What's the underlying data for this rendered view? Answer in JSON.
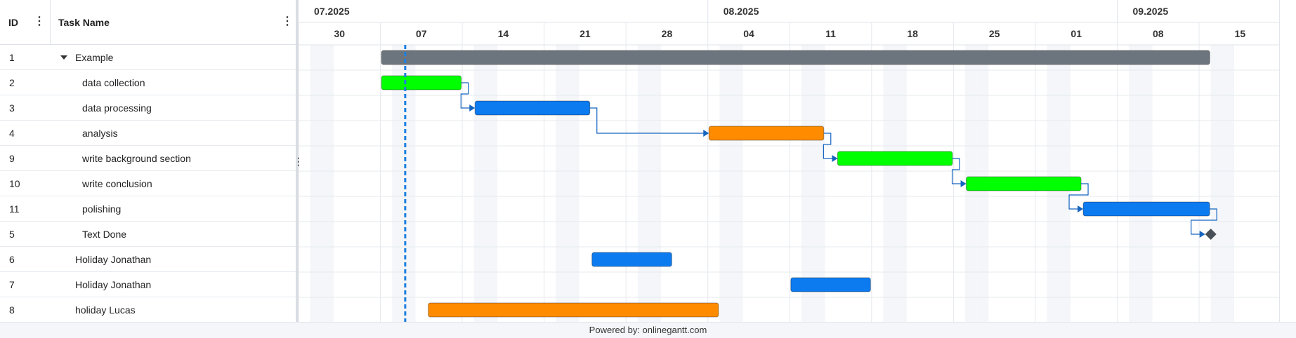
{
  "grid": {
    "col_id": "ID",
    "col_name": "Task Name",
    "menu_glyph": "⋮",
    "rows": [
      {
        "id": "1",
        "name": "Example",
        "level": 0,
        "expandable": true
      },
      {
        "id": "2",
        "name": "data collection",
        "level": 1
      },
      {
        "id": "3",
        "name": "data processing",
        "level": 1
      },
      {
        "id": "4",
        "name": "analysis",
        "level": 1
      },
      {
        "id": "9",
        "name": "write background section",
        "level": 1
      },
      {
        "id": "10",
        "name": "write conclusion",
        "level": 1
      },
      {
        "id": "11",
        "name": "polishing",
        "level": 1
      },
      {
        "id": "5",
        "name": "Text Done",
        "level": 1
      },
      {
        "id": "6",
        "name": "Holiday Jonathan",
        "level": 0
      },
      {
        "id": "7",
        "name": "Holiday Jonathan",
        "level": 0
      },
      {
        "id": "8",
        "name": "holiday Lucas",
        "level": 0
      }
    ]
  },
  "timeline": {
    "start_date": "2025-06-27",
    "today": "2025-07-06",
    "months": [
      {
        "label": "07.2025",
        "start": "2025-06-27"
      },
      {
        "label": "08.2025",
        "start": "2025-08-01"
      },
      {
        "label": "09.2025",
        "start": "2025-09-05"
      }
    ],
    "weeks": [
      {
        "label": "30",
        "start": "2025-06-27"
      },
      {
        "label": "07",
        "start": "2025-07-04"
      },
      {
        "label": "14",
        "start": "2025-07-11"
      },
      {
        "label": "21",
        "start": "2025-07-18"
      },
      {
        "label": "28",
        "start": "2025-07-25"
      },
      {
        "label": "04",
        "start": "2025-08-01"
      },
      {
        "label": "11",
        "start": "2025-08-08"
      },
      {
        "label": "18",
        "start": "2025-08-15"
      },
      {
        "label": "25",
        "start": "2025-08-22"
      },
      {
        "label": "01",
        "start": "2025-08-29"
      },
      {
        "label": "08",
        "start": "2025-09-05"
      },
      {
        "label": "15",
        "start": "2025-09-12"
      }
    ]
  },
  "bars": [
    {
      "row": 0,
      "start": "2025-07-04",
      "end": "2025-09-13",
      "color": "#6c757d",
      "kind": "summary"
    },
    {
      "row": 1,
      "start": "2025-07-04",
      "end": "2025-07-11",
      "color": "#00ff00"
    },
    {
      "row": 2,
      "start": "2025-07-12",
      "end": "2025-07-22",
      "color": "#0d7bf0"
    },
    {
      "row": 3,
      "start": "2025-08-01",
      "end": "2025-08-11",
      "color": "#ff8c00"
    },
    {
      "row": 4,
      "start": "2025-08-12",
      "end": "2025-08-22",
      "color": "#00ff00"
    },
    {
      "row": 5,
      "start": "2025-08-23",
      "end": "2025-09-02",
      "color": "#00ff00"
    },
    {
      "row": 6,
      "start": "2025-09-02",
      "end": "2025-09-13",
      "color": "#0d7bf0"
    },
    {
      "row": 7,
      "start": "2025-09-13",
      "end": "2025-09-13",
      "color": "#495057",
      "kind": "milestone"
    },
    {
      "row": 8,
      "start": "2025-07-22",
      "end": "2025-07-29",
      "color": "#0d7bf0"
    },
    {
      "row": 9,
      "start": "2025-08-08",
      "end": "2025-08-15",
      "color": "#0d7bf0"
    },
    {
      "row": 10,
      "start": "2025-07-08",
      "end": "2025-08-02",
      "color": "#ff8c00"
    }
  ],
  "links": [
    [
      1,
      2
    ],
    [
      2,
      3
    ],
    [
      3,
      4
    ],
    [
      4,
      5
    ],
    [
      5,
      6
    ],
    [
      6,
      7
    ]
  ],
  "colors": {
    "link": "#1565c0",
    "today": "#1e7fe0",
    "weekend": "#f4f6f9",
    "grid": "#e6e9ee"
  },
  "footer": {
    "text": "Powered by: onlinegantt.com"
  }
}
